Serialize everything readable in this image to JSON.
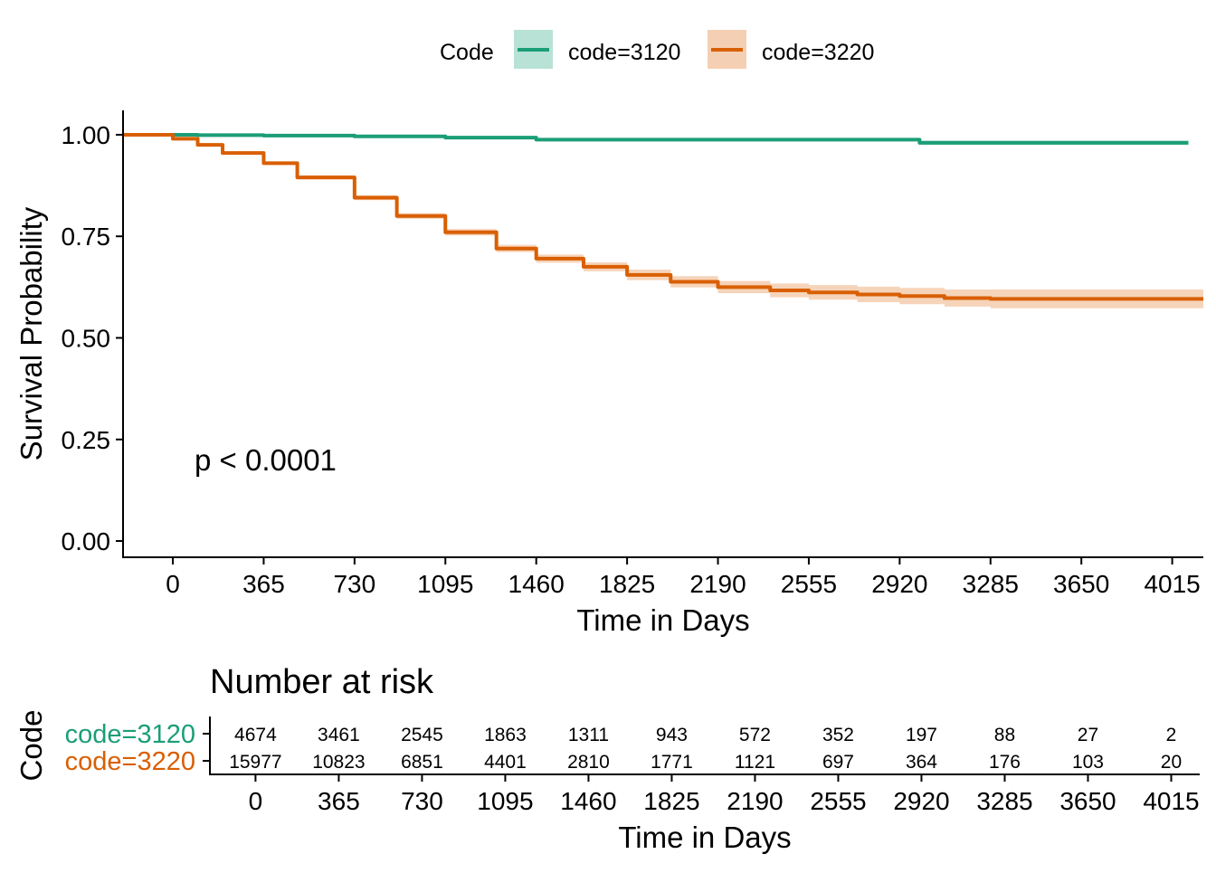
{
  "chart_data": [
    {
      "type": "line",
      "subtype": "kaplan-meier",
      "xlabel": "Time in Days",
      "ylabel": "Survival Probability",
      "xlim": [
        -200,
        4140
      ],
      "ylim": [
        -0.04,
        1.06
      ],
      "x_ticks": [
        0,
        365,
        730,
        1095,
        1460,
        1825,
        2190,
        2555,
        2920,
        3285,
        3650,
        4015
      ],
      "y_ticks": [
        0.0,
        0.25,
        0.5,
        0.75,
        1.0
      ],
      "y_tick_labels": [
        "0.00",
        "0.25",
        "0.50",
        "0.75",
        "1.00"
      ],
      "legend": {
        "title": "Code",
        "position": "top"
      },
      "annotation": "p < 0.0001",
      "grid": false,
      "series": [
        {
          "name": "code=3120",
          "color": "#1b9e77",
          "band_color": "#b8e2d5",
          "x": [
            -200,
            0,
            100,
            365,
            730,
            1095,
            1460,
            1825,
            2190,
            2555,
            2920,
            3000,
            4015,
            4080
          ],
          "y": [
            1.0,
            1.0,
            0.999,
            0.998,
            0.996,
            0.993,
            0.988,
            0.988,
            0.988,
            0.988,
            0.988,
            0.98,
            0.98,
            0.98
          ],
          "ci_low": [
            1.0,
            1.0,
            0.998,
            0.997,
            0.994,
            0.991,
            0.986,
            0.986,
            0.986,
            0.986,
            0.985,
            0.975,
            0.975,
            0.975
          ],
          "ci_high": [
            1.0,
            1.0,
            1.0,
            0.999,
            0.998,
            0.995,
            0.991,
            0.991,
            0.991,
            0.991,
            0.991,
            0.986,
            0.986,
            0.986
          ]
        },
        {
          "name": "code=3220",
          "color": "#d95f02",
          "band_color": "#f5cfb3",
          "x": [
            -200,
            0,
            100,
            200,
            365,
            500,
            730,
            900,
            1095,
            1300,
            1460,
            1650,
            1825,
            2000,
            2190,
            2400,
            2555,
            2750,
            2920,
            3100,
            3285,
            3650,
            4015,
            4140
          ],
          "y": [
            1.0,
            0.99,
            0.975,
            0.955,
            0.93,
            0.895,
            0.845,
            0.8,
            0.76,
            0.72,
            0.695,
            0.675,
            0.655,
            0.638,
            0.625,
            0.617,
            0.612,
            0.607,
            0.603,
            0.598,
            0.596,
            0.596,
            0.596,
            0.596
          ],
          "ci_low": [
            1.0,
            0.989,
            0.972,
            0.951,
            0.926,
            0.89,
            0.839,
            0.793,
            0.752,
            0.711,
            0.685,
            0.664,
            0.642,
            0.624,
            0.61,
            0.6,
            0.594,
            0.588,
            0.583,
            0.577,
            0.573,
            0.573,
            0.573,
            0.573
          ],
          "ci_high": [
            1.0,
            0.992,
            0.978,
            0.959,
            0.934,
            0.9,
            0.851,
            0.807,
            0.768,
            0.729,
            0.705,
            0.686,
            0.668,
            0.652,
            0.64,
            0.634,
            0.63,
            0.626,
            0.623,
            0.619,
            0.619,
            0.619,
            0.619,
            0.619
          ]
        }
      ]
    },
    {
      "type": "table",
      "title": "Number at risk",
      "xlabel": "Time in Days",
      "ylabel": "Code",
      "x_ticks": [
        0,
        365,
        730,
        1095,
        1460,
        1825,
        2190,
        2555,
        2920,
        3285,
        3650,
        4015
      ],
      "rows": [
        {
          "name": "code=3120",
          "color": "#1b9e77",
          "values": [
            4674,
            3461,
            2545,
            1863,
            1311,
            943,
            572,
            352,
            197,
            88,
            27,
            2
          ]
        },
        {
          "name": "code=3220",
          "color": "#d95f02",
          "values": [
            15977,
            10823,
            6851,
            4401,
            2810,
            1771,
            1121,
            697,
            364,
            176,
            103,
            20
          ]
        }
      ]
    }
  ]
}
